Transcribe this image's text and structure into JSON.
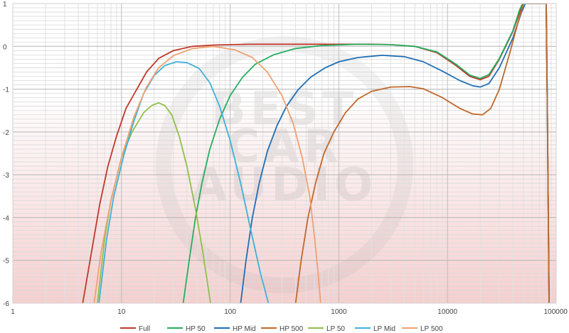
{
  "chart_data": {
    "type": "line",
    "title": "",
    "xlabel": "",
    "ylabel": "",
    "x_scale": "log",
    "xlim": [
      1,
      100000
    ],
    "ylim": [
      -6,
      1
    ],
    "x_ticks": [
      {
        "value": 1,
        "label": "1"
      },
      {
        "value": 10,
        "label": "10"
      },
      {
        "value": 100,
        "label": "100"
      },
      {
        "value": 1000,
        "label": "1000"
      },
      {
        "value": 10000,
        "label": "10000"
      },
      {
        "value": 100000,
        "label": "100000"
      }
    ],
    "y_ticks": [
      {
        "value": 1,
        "label": "1"
      },
      {
        "value": 0,
        "label": "0"
      },
      {
        "value": -1,
        "label": "-1"
      },
      {
        "value": -2,
        "label": "-2"
      },
      {
        "value": -3,
        "label": "-3"
      },
      {
        "value": -4,
        "label": "-4"
      },
      {
        "value": -5,
        "label": "-5"
      },
      {
        "value": -6,
        "label": "-6"
      }
    ],
    "grid": true,
    "legend_position": "bottom",
    "watermark_text": [
      "BEST",
      "CAR",
      "AUDIO"
    ],
    "series": [
      {
        "name": "Full",
        "color": "#c0392b",
        "points": [
          [
            4.4,
            -6
          ],
          [
            5.3,
            -4.8
          ],
          [
            6.3,
            -3.7
          ],
          [
            7.5,
            -2.8
          ],
          [
            9,
            -2.1
          ],
          [
            11,
            -1.45
          ],
          [
            13.5,
            -1.05
          ],
          [
            17,
            -0.6
          ],
          [
            22,
            -0.28
          ],
          [
            30,
            -0.1
          ],
          [
            45,
            0
          ],
          [
            70,
            0.03
          ],
          [
            150,
            0.05
          ],
          [
            500,
            0.05
          ],
          [
            1000,
            0.05
          ],
          [
            2000,
            0.05
          ],
          [
            3000,
            0.04
          ],
          [
            5000,
            0
          ],
          [
            8000,
            -0.15
          ],
          [
            12000,
            -0.45
          ],
          [
            16000,
            -0.7
          ],
          [
            20000,
            -0.78
          ],
          [
            24000,
            -0.7
          ],
          [
            30000,
            -0.3
          ],
          [
            40000,
            0.35
          ],
          [
            47000,
            0.85
          ],
          [
            50000,
            1.0
          ],
          [
            81000,
            1.0
          ],
          [
            83000,
            -1.5
          ],
          [
            86000,
            -6
          ]
        ]
      },
      {
        "name": "HP 50",
        "color": "#27ae60",
        "points": [
          [
            37,
            -6
          ],
          [
            42,
            -5
          ],
          [
            48,
            -4
          ],
          [
            55,
            -3.2
          ],
          [
            65,
            -2.4
          ],
          [
            80,
            -1.7
          ],
          [
            100,
            -1.15
          ],
          [
            130,
            -0.72
          ],
          [
            170,
            -0.42
          ],
          [
            250,
            -0.2
          ],
          [
            400,
            -0.05
          ],
          [
            700,
            0.02
          ],
          [
            1500,
            0.05
          ],
          [
            3000,
            0.04
          ],
          [
            5000,
            0
          ],
          [
            8000,
            -0.13
          ],
          [
            12000,
            -0.42
          ],
          [
            16000,
            -0.67
          ],
          [
            20000,
            -0.75
          ],
          [
            24000,
            -0.66
          ],
          [
            30000,
            -0.28
          ],
          [
            40000,
            0.37
          ],
          [
            46000,
            0.85
          ],
          [
            49000,
            1.0
          ],
          [
            81000,
            1.0
          ],
          [
            83000,
            -1.5
          ],
          [
            86000,
            -6
          ]
        ]
      },
      {
        "name": "HP Mid",
        "color": "#1f6fb5",
        "points": [
          [
            125,
            -6
          ],
          [
            140,
            -5
          ],
          [
            160,
            -4
          ],
          [
            185,
            -3.2
          ],
          [
            220,
            -2.45
          ],
          [
            270,
            -1.85
          ],
          [
            330,
            -1.4
          ],
          [
            420,
            -1.02
          ],
          [
            550,
            -0.72
          ],
          [
            750,
            -0.5
          ],
          [
            1000,
            -0.36
          ],
          [
            1500,
            -0.26
          ],
          [
            2500,
            -0.21
          ],
          [
            4000,
            -0.24
          ],
          [
            6000,
            -0.36
          ],
          [
            9000,
            -0.58
          ],
          [
            13000,
            -0.8
          ],
          [
            17000,
            -0.92
          ],
          [
            20000,
            -0.95
          ],
          [
            24000,
            -0.87
          ],
          [
            30000,
            -0.5
          ],
          [
            40000,
            0.2
          ],
          [
            48000,
            0.8
          ],
          [
            52000,
            1.0
          ],
          [
            81000,
            1.0
          ],
          [
            83000,
            -1.5
          ],
          [
            86000,
            -6
          ]
        ]
      },
      {
        "name": "HP 500",
        "color": "#c0682b",
        "points": [
          [
            400,
            -6
          ],
          [
            450,
            -5
          ],
          [
            520,
            -4
          ],
          [
            610,
            -3.2
          ],
          [
            730,
            -2.5
          ],
          [
            900,
            -2.0
          ],
          [
            1150,
            -1.55
          ],
          [
            1500,
            -1.23
          ],
          [
            2000,
            -1.05
          ],
          [
            3000,
            -0.95
          ],
          [
            4500,
            -0.94
          ],
          [
            6000,
            -0.99
          ],
          [
            9000,
            -1.2
          ],
          [
            13000,
            -1.45
          ],
          [
            17000,
            -1.58
          ],
          [
            21000,
            -1.6
          ],
          [
            25000,
            -1.45
          ],
          [
            30000,
            -1.0
          ],
          [
            37000,
            -0.2
          ],
          [
            45000,
            0.6
          ],
          [
            50000,
            1.0
          ],
          [
            81000,
            1.0
          ],
          [
            83000,
            -1.5
          ],
          [
            86000,
            -6
          ]
        ]
      },
      {
        "name": "LP 50",
        "color": "#8dc14a",
        "points": [
          [
            6,
            -6
          ],
          [
            7,
            -4.5
          ],
          [
            8,
            -3.6
          ],
          [
            10,
            -2.6
          ],
          [
            12.5,
            -2
          ],
          [
            16,
            -1.55
          ],
          [
            19,
            -1.38
          ],
          [
            22,
            -1.32
          ],
          [
            25,
            -1.38
          ],
          [
            29,
            -1.6
          ],
          [
            34,
            -2.1
          ],
          [
            40,
            -2.8
          ],
          [
            48,
            -3.8
          ],
          [
            56,
            -4.8
          ],
          [
            66,
            -6
          ]
        ]
      },
      {
        "name": "LP Mid",
        "color": "#3fb1d8",
        "points": [
          [
            6.2,
            -6
          ],
          [
            7.3,
            -4.5
          ],
          [
            8.5,
            -3.5
          ],
          [
            10.5,
            -2.55
          ],
          [
            13,
            -1.75
          ],
          [
            16,
            -1.1
          ],
          [
            20,
            -0.68
          ],
          [
            25,
            -0.45
          ],
          [
            32,
            -0.36
          ],
          [
            40,
            -0.38
          ],
          [
            52,
            -0.52
          ],
          [
            65,
            -0.85
          ],
          [
            80,
            -1.4
          ],
          [
            100,
            -2.2
          ],
          [
            125,
            -3.2
          ],
          [
            155,
            -4.3
          ],
          [
            190,
            -5.3
          ],
          [
            225,
            -6
          ]
        ]
      },
      {
        "name": "LP 500",
        "color": "#f0a070",
        "points": [
          [
            5.6,
            -6
          ],
          [
            6.5,
            -4.8
          ],
          [
            8,
            -3.6
          ],
          [
            10,
            -2.6
          ],
          [
            13,
            -1.65
          ],
          [
            17,
            -0.95
          ],
          [
            22,
            -0.5
          ],
          [
            30,
            -0.22
          ],
          [
            45,
            -0.05
          ],
          [
            70,
            0
          ],
          [
            110,
            -0.08
          ],
          [
            160,
            -0.26
          ],
          [
            220,
            -0.6
          ],
          [
            300,
            -1.15
          ],
          [
            380,
            -1.8
          ],
          [
            460,
            -2.6
          ],
          [
            540,
            -3.5
          ],
          [
            600,
            -4.5
          ],
          [
            650,
            -5.4
          ],
          [
            680,
            -6
          ]
        ]
      }
    ]
  }
}
